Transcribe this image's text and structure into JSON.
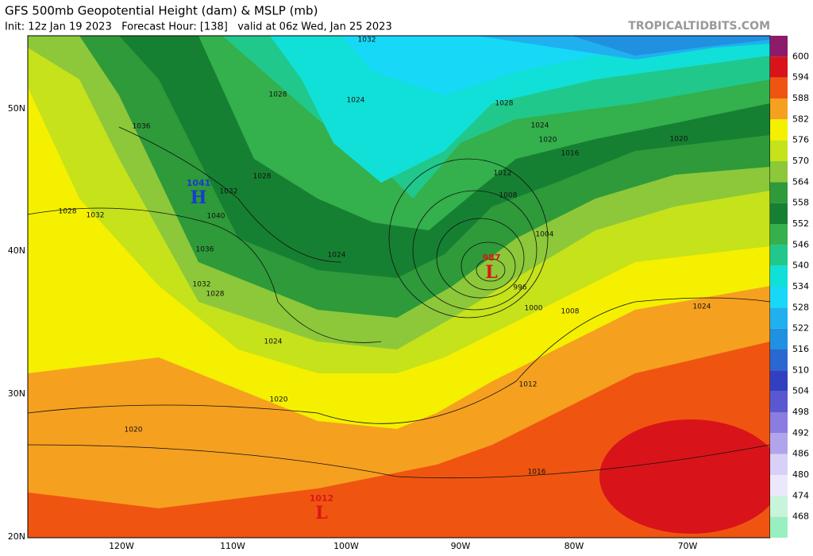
{
  "header": {
    "title": "GFS 500mb Geopotential Height (dam) & MSLP (mb)",
    "subtitle": "Init: 12z Jan 19 2023   Forecast Hour: [138]   valid at 06z Wed, Jan 25 2023",
    "brand": "TROPICALTIDBITS.COM"
  },
  "colorbar": {
    "labels": [
      600,
      594,
      588,
      582,
      576,
      570,
      564,
      558,
      552,
      546,
      540,
      534,
      528,
      522,
      516,
      510,
      504,
      498,
      492,
      486,
      480,
      474,
      468
    ],
    "colors": [
      "#8e1a6a",
      "#d8141a",
      "#ef5510",
      "#f6a020",
      "#f4f000",
      "#c6e21a",
      "#8cc83a",
      "#2e9a3a",
      "#168032",
      "#34b04c",
      "#20c88c",
      "#10e0d8",
      "#18d8f8",
      "#20b0f0",
      "#2090e0",
      "#2868d0",
      "#3040c0",
      "#5a58d0",
      "#8a7ce0",
      "#b0a4ec",
      "#d8d0f6",
      "#ece8fc",
      "#c8f4dc",
      "#98f0c0"
    ]
  },
  "axes": {
    "lat_labels": [
      "50N",
      "40N",
      "30N",
      "20N"
    ],
    "lon_labels": [
      "120W",
      "110W",
      "100W",
      "90W",
      "80W",
      "70W"
    ]
  },
  "centers": [
    {
      "value": "1041",
      "letter": "H"
    },
    {
      "value": "987",
      "letter": "L"
    },
    {
      "value": "1012",
      "letter": "L"
    }
  ],
  "isobar_labels": [
    "1032",
    "1028",
    "1024",
    "1028",
    "1024",
    "1020",
    "1016",
    "1012",
    "1008",
    "1036",
    "1028",
    "1032",
    "1040",
    "1028",
    "1032",
    "1036",
    "1024",
    "1032",
    "1028",
    "1024",
    "1004",
    "996",
    "1000",
    "1008",
    "1024",
    "1020",
    "1012",
    "1020",
    "1020",
    "1016"
  ]
}
